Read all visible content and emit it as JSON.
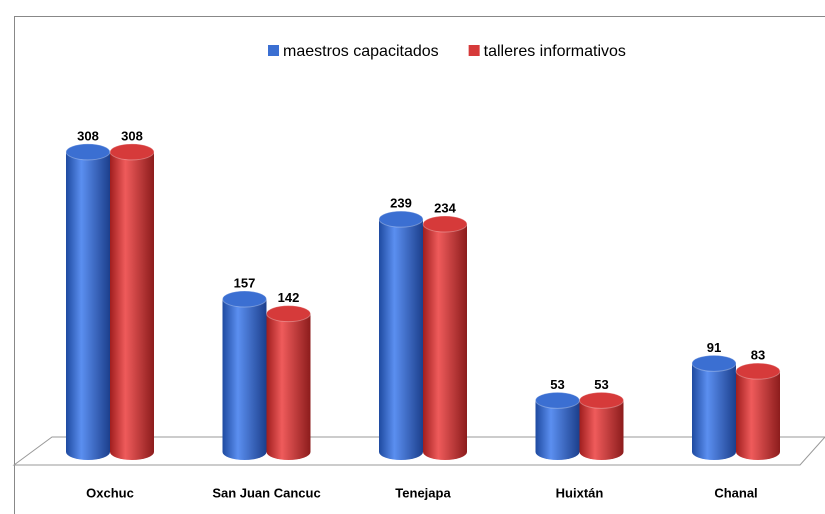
{
  "chart_data": {
    "type": "bar",
    "categories": [
      "Oxchuc",
      "San Juan Cancuc",
      "Tenejapa",
      "Huixtán",
      "Chanal"
    ],
    "series": [
      {
        "name": "maestros capacitados",
        "color": "#3b6fd2",
        "values": [
          308,
          157,
          239,
          53,
          91
        ]
      },
      {
        "name": "talleres informativos",
        "color": "#d63a3a",
        "values": [
          308,
          142,
          234,
          53,
          83
        ]
      }
    ],
    "ylim": [
      0,
      350
    ],
    "legend": "top"
  }
}
